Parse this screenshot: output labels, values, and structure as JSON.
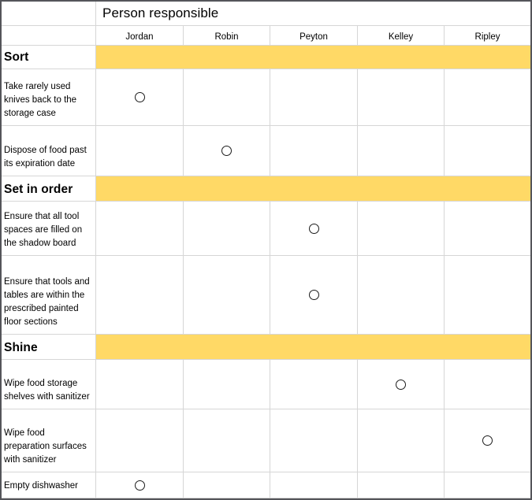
{
  "header": {
    "title": "Person responsible"
  },
  "people": [
    "Jordan",
    "Robin",
    "Peyton",
    "Kelley",
    "Ripley"
  ],
  "sections": [
    {
      "title": "Sort",
      "tasks": [
        {
          "label": "Take rarely used knives back to the storage case",
          "responsible": "Jordan"
        },
        {
          "label": "Dispose of food past its expiration date",
          "responsible": "Robin"
        }
      ]
    },
    {
      "title": "Set in order",
      "tasks": [
        {
          "label": "Ensure that all tool spaces are filled on the shadow board",
          "responsible": "Peyton"
        },
        {
          "label": "Ensure that tools and tables are within the prescribed painted floor sections",
          "responsible": "Peyton"
        }
      ]
    },
    {
      "title": "Shine",
      "tasks": [
        {
          "label": "Wipe food storage shelves with sanitizer",
          "responsible": "Kelley"
        },
        {
          "label": "Wipe food preparation surfaces with sanitizer",
          "responsible": "Ripley"
        },
        {
          "label": "Empty dishwasher",
          "responsible": "Jordan"
        }
      ]
    }
  ],
  "mark": {
    "shape": "empty-circle"
  },
  "colors": {
    "section_fill": "#FFD966",
    "gridline": "#D6D6D6",
    "frame": "#54555A",
    "text": "#000000"
  }
}
